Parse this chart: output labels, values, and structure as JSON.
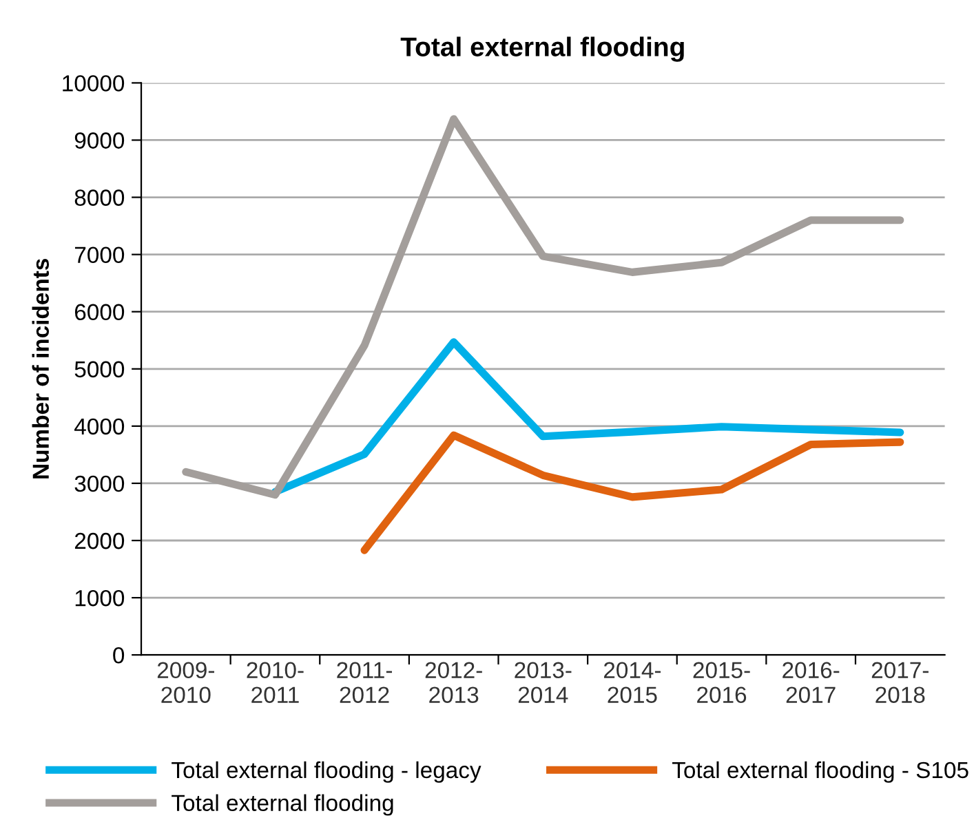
{
  "chart_data": {
    "type": "line",
    "title": "Total external flooding",
    "ylabel": "Number of incidents",
    "categories": [
      "2009-\n2010",
      "2010-\n2011",
      "2011-\n2012",
      "2012-\n2013",
      "2013-\n2014",
      "2014-\n2015",
      "2015-\n2016",
      "2016-\n2017",
      "2017-\n2018"
    ],
    "series": [
      {
        "name": "Total external flooding - legacy",
        "color": "#00b0e8",
        "values": [
          null,
          2850,
          3510,
          5470,
          3820,
          3900,
          3990,
          3940,
          3890
        ]
      },
      {
        "name": "Total external flooding",
        "color": "#a39e9b",
        "values": [
          3200,
          2800,
          5410,
          9370,
          6970,
          6690,
          6860,
          7600,
          7600
        ]
      },
      {
        "name": "Total external flooding - S105",
        "color": "#e0620f",
        "values": [
          null,
          null,
          1830,
          3840,
          3140,
          2760,
          2890,
          3680,
          3720
        ]
      }
    ],
    "ylim": [
      0,
      10000
    ],
    "yticks": [
      0,
      1000,
      2000,
      3000,
      4000,
      5000,
      6000,
      7000,
      8000,
      9000,
      10000
    ],
    "grid": "y",
    "legend": "bottom",
    "marker": "none",
    "line_style": "solid"
  }
}
